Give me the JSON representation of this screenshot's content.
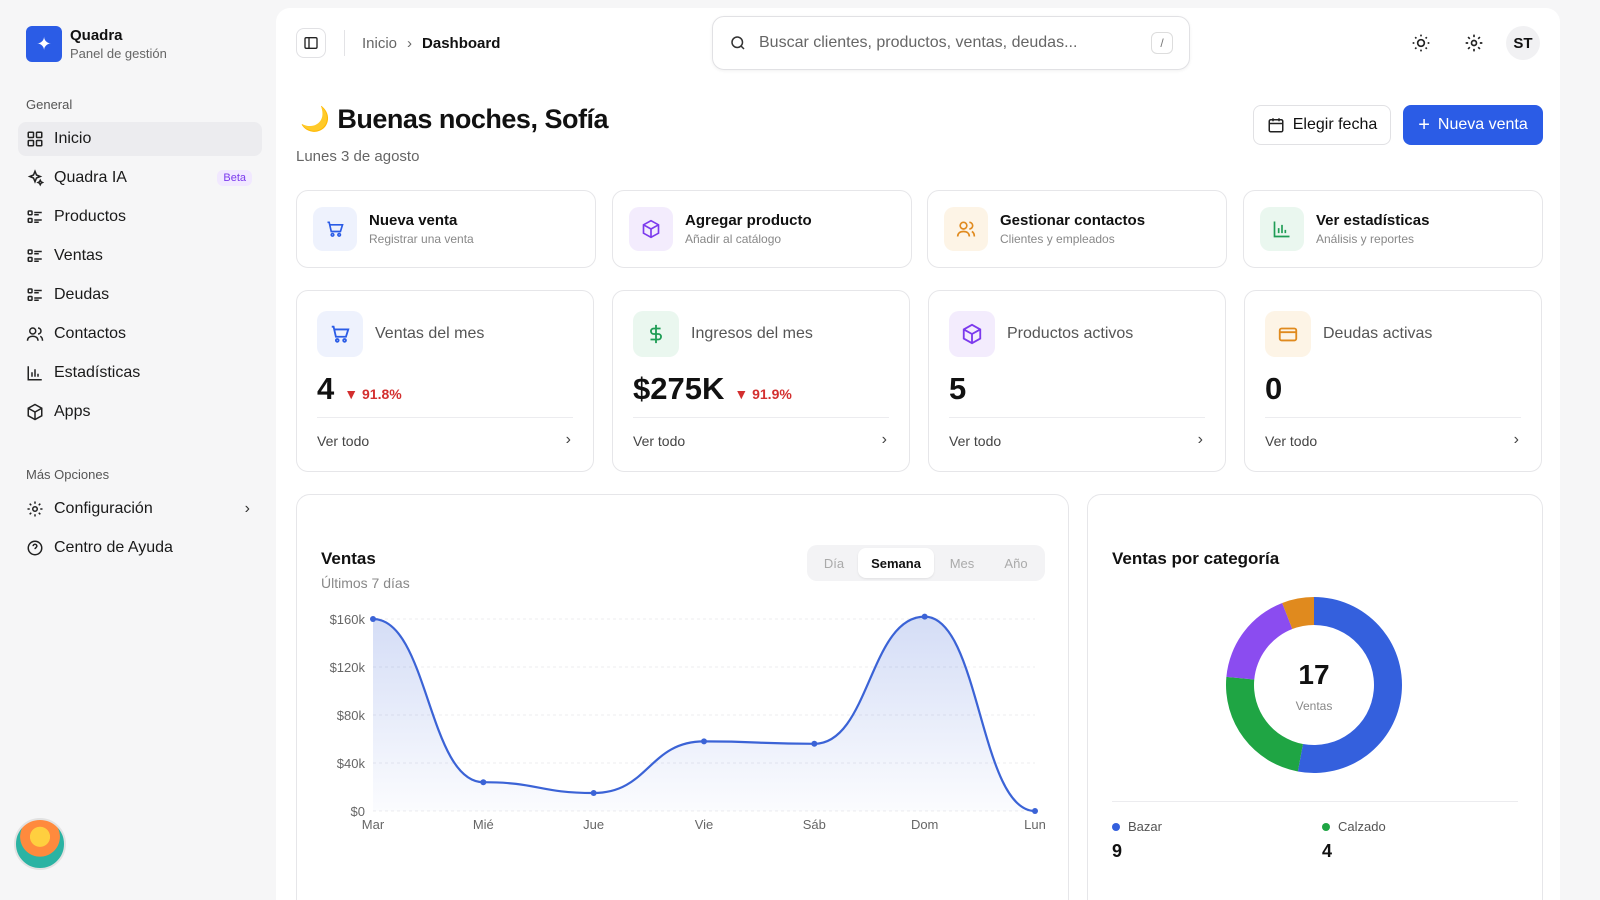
{
  "app": {
    "name": "Quadra",
    "subtitle": "Panel de gestión",
    "logo_icon": "sparkle-icon"
  },
  "sidebar": {
    "section_general": "General",
    "items": [
      {
        "label": "Inicio",
        "icon": "grid-icon",
        "active": true
      },
      {
        "label": "Quadra IA",
        "icon": "sparkles-icon",
        "badge": "Beta"
      },
      {
        "label": "Productos",
        "icon": "list-icon"
      },
      {
        "label": "Ventas",
        "icon": "list-icon"
      },
      {
        "label": "Deudas",
        "icon": "list-icon"
      },
      {
        "label": "Contactos",
        "icon": "users-icon"
      },
      {
        "label": "Estadísticas",
        "icon": "bar-chart-icon"
      },
      {
        "label": "Apps",
        "icon": "box-icon"
      }
    ],
    "section_more": "Más Opciones",
    "more_items": [
      {
        "label": "Configuración",
        "icon": "gear-icon",
        "has_chevron": true
      },
      {
        "label": "Centro de Ayuda",
        "icon": "help-icon"
      }
    ]
  },
  "topbar": {
    "breadcrumb": [
      "Inicio",
      "Dashboard"
    ],
    "search_placeholder": "Buscar clientes, productos, ventas, deudas...",
    "search_shortcut": "/",
    "avatar_initials": "ST"
  },
  "header": {
    "greeting": "Buenas noches, Sofía",
    "date": "Lunes 3 de agosto",
    "btn_date": "Elegir fecha",
    "btn_new_sale": "Nueva venta"
  },
  "quick_actions": [
    {
      "title": "Nueva venta",
      "subtitle": "Registrar una venta",
      "icon": "cart-icon",
      "color": "#2b5ce6",
      "bg": "#eef2fd"
    },
    {
      "title": "Agregar producto",
      "subtitle": "Añadir al catálogo",
      "icon": "box-icon",
      "color": "#7c3aed",
      "bg": "#f3ecfd"
    },
    {
      "title": "Gestionar contactos",
      "subtitle": "Clientes y empleados",
      "icon": "users-icon",
      "color": "#e08a1e",
      "bg": "#fdf4e6"
    },
    {
      "title": "Ver estadísticas",
      "subtitle": "Análisis y reportes",
      "icon": "bar-chart-icon",
      "color": "#1f9d55",
      "bg": "#eaf7ef"
    }
  ],
  "stats": [
    {
      "label": "Ventas del mes",
      "value": "4",
      "change": "▼ 91.8%",
      "link": "Ver todo",
      "icon": "cart-icon",
      "color": "#2b5ce6",
      "bg": "#eef2fd"
    },
    {
      "label": "Ingresos del mes",
      "value": "$275K",
      "change": "▼ 91.9%",
      "link": "Ver todo",
      "icon": "dollar-icon",
      "color": "#1f9d55",
      "bg": "#eaf7ef"
    },
    {
      "label": "Productos activos",
      "value": "5",
      "change": "",
      "link": "Ver todo",
      "icon": "box-icon",
      "color": "#7c3aed",
      "bg": "#f3ecfd"
    },
    {
      "label": "Deudas activas",
      "value": "0",
      "change": "",
      "link": "Ver todo",
      "icon": "card-icon",
      "color": "#e08a1e",
      "bg": "#fdf4e6"
    }
  ],
  "sales_chart": {
    "title": "Ventas",
    "subtitle": "Últimos 7 días",
    "tabs": [
      "Día",
      "Semana",
      "Mes",
      "Año"
    ],
    "active_tab": "Semana"
  },
  "chart_data": {
    "type": "area",
    "categories": [
      "Mar",
      "Mié",
      "Jue",
      "Vie",
      "Sáb",
      "Dom",
      "Lun"
    ],
    "series": [
      {
        "values": [
          160000,
          24000,
          15000,
          58000,
          56000,
          162000,
          0
        ]
      }
    ],
    "ylim": [
      0,
      160000
    ],
    "ytick_labels": [
      "$0",
      "$40k",
      "$80k",
      "$120k",
      "$160k"
    ],
    "yticks": [
      0,
      40000,
      80000,
      120000,
      160000
    ],
    "grid": true,
    "colors": {
      "line": "#3b63d6"
    }
  },
  "category_chart": {
    "title": "Ventas por categoría",
    "total": "17",
    "total_label": "Ventas",
    "slices": [
      {
        "name": "Bazar",
        "value": 9,
        "color": "#3460dd"
      },
      {
        "name": "Calzado",
        "value": 4,
        "color": "#1fa544"
      },
      {
        "name": "",
        "value": 3,
        "color": "#8b4cf0"
      },
      {
        "name": "",
        "value": 1,
        "color": "#e08a1e"
      }
    ]
  }
}
